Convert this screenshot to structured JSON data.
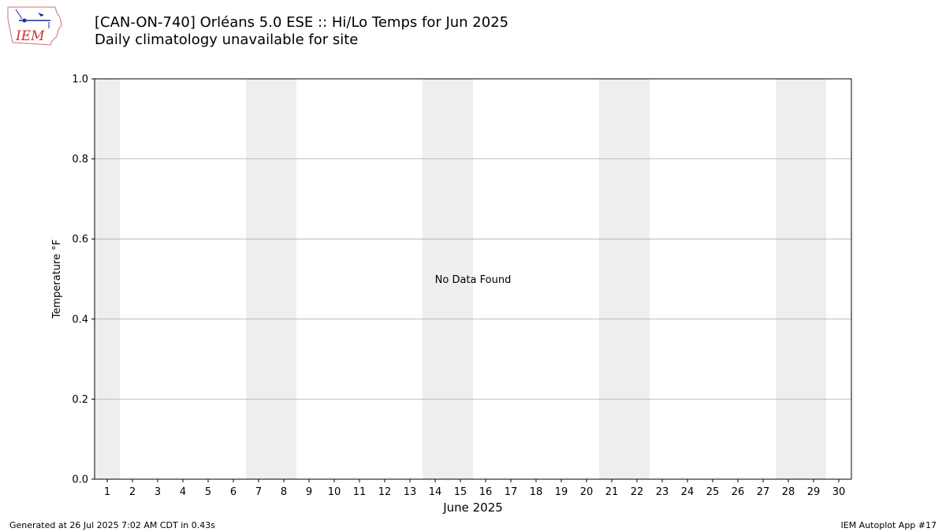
{
  "header": {
    "title": "[CAN-ON-740] Orléans 5.0 ESE :: Hi/Lo Temps for Jun 2025",
    "subtitle": "Daily climatology unavailable for site",
    "logo_text": "IEM"
  },
  "footer": {
    "generated": "Generated at 26 Jul 2025 7:02 AM CDT in 0.43s",
    "app": "IEM Autoplot App #17"
  },
  "chart_data": {
    "type": "bar",
    "title": "[CAN-ON-740] Orléans 5.0 ESE :: Hi/Lo Temps for Jun 2025",
    "subtitle": "Daily climatology unavailable for site",
    "xlabel": "June 2025",
    "ylabel": "Temperature °F",
    "categories": [
      "1",
      "2",
      "3",
      "4",
      "5",
      "6",
      "7",
      "8",
      "9",
      "10",
      "11",
      "12",
      "13",
      "14",
      "15",
      "16",
      "17",
      "18",
      "19",
      "20",
      "21",
      "22",
      "23",
      "24",
      "25",
      "26",
      "27",
      "28",
      "29",
      "30"
    ],
    "series": [],
    "xlim": [
      0.5,
      30.5
    ],
    "ylim": [
      0,
      1
    ],
    "yticks": [
      "0.0",
      "0.2",
      "0.4",
      "0.6",
      "0.8",
      "1.0"
    ],
    "weekend_days": [
      1,
      7,
      8,
      14,
      15,
      21,
      22,
      28,
      29
    ],
    "grid": "horizontal",
    "annotation": "No Data Found",
    "colors": {
      "weekend_shade": "#eeeeee",
      "grid": "#b0b0b0",
      "logo_text": "#d03030",
      "logo_icon": "#1a2a9a"
    }
  }
}
